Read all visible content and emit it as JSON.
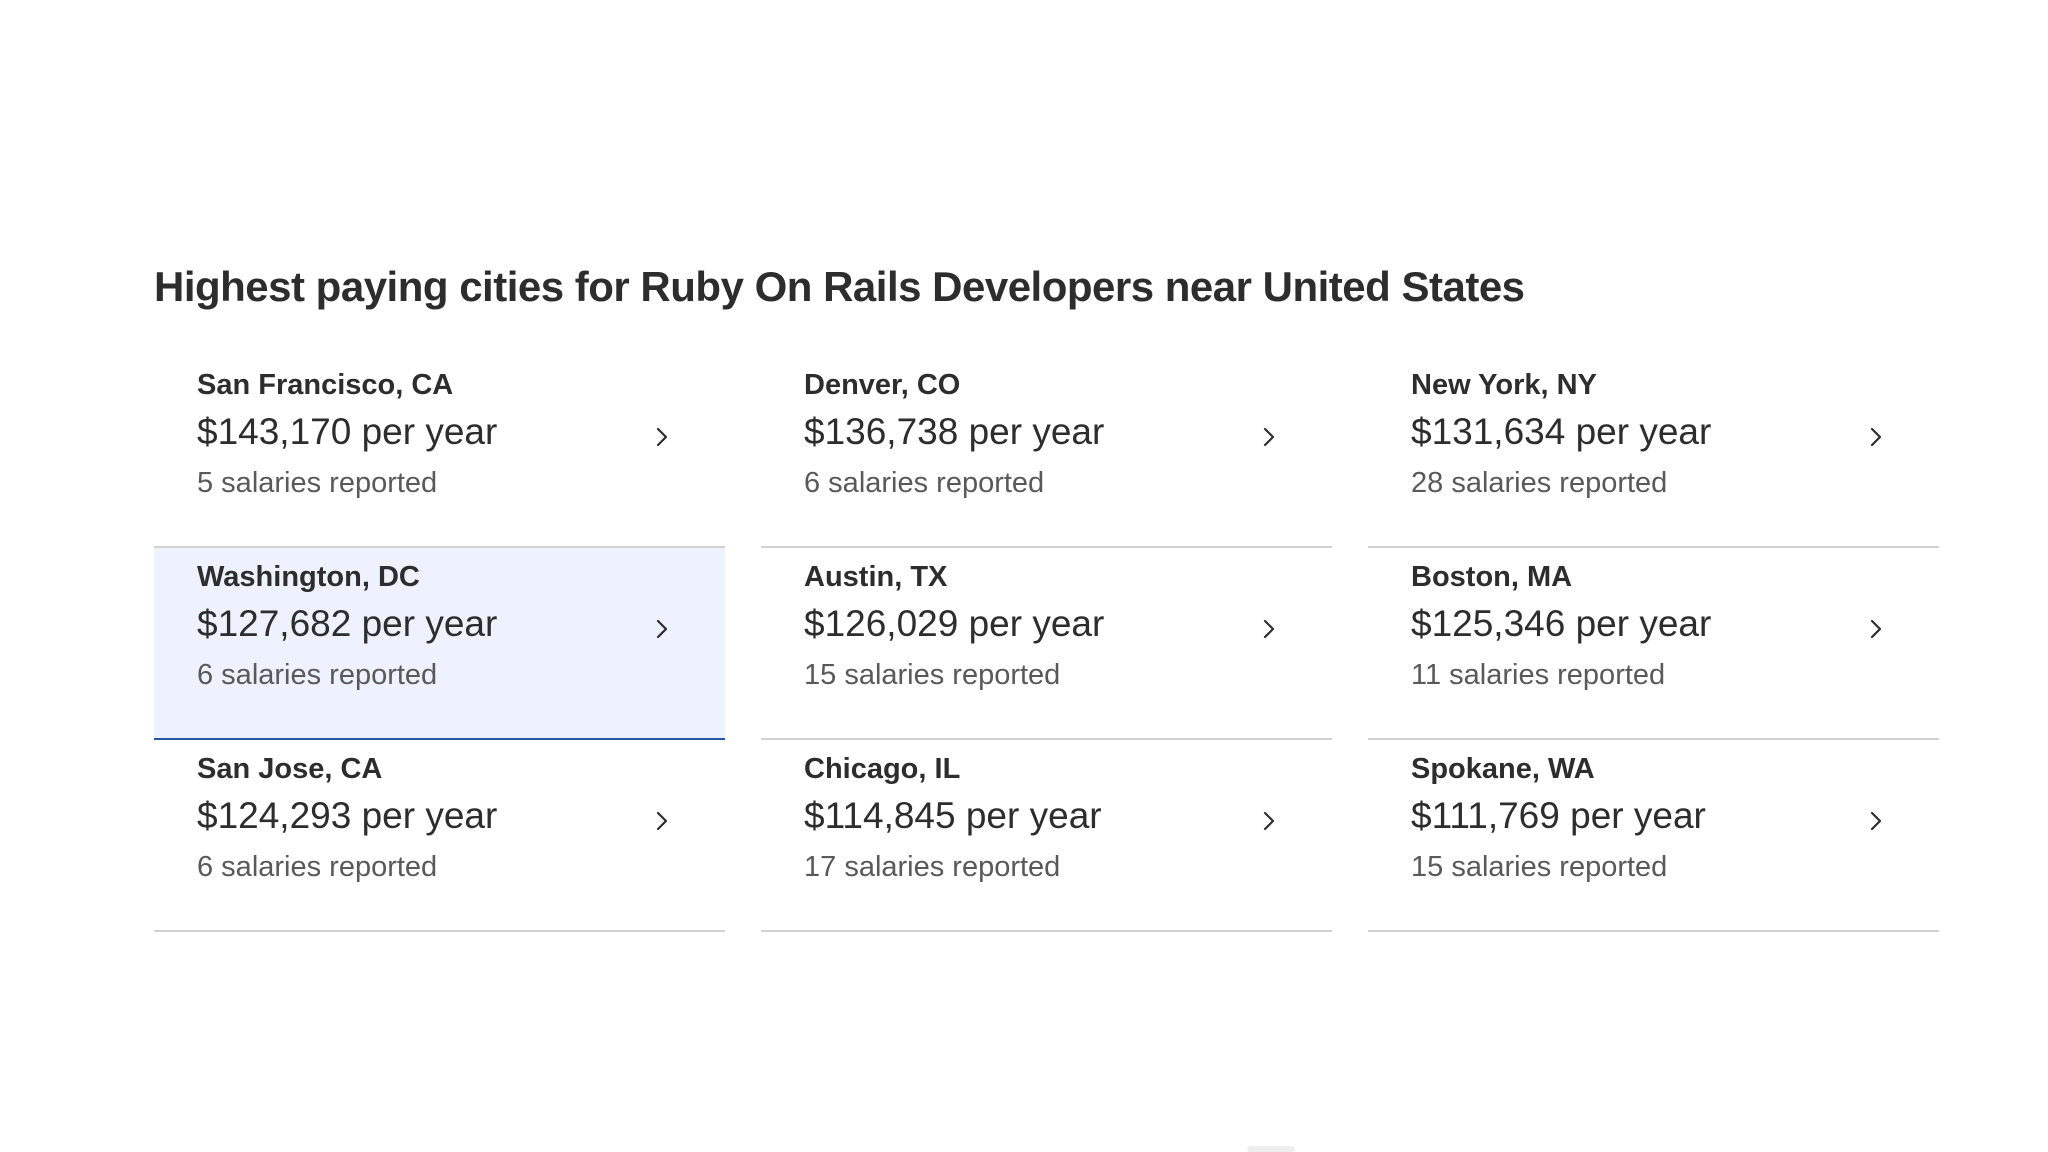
{
  "section": {
    "title": "Highest paying cities for Ruby On Rails Developers near United States"
  },
  "cities": [
    {
      "city": "San Francisco, CA",
      "salary": "$143,170 per year",
      "count": "5 salaries reported"
    },
    {
      "city": "Denver, CO",
      "salary": "$136,738 per year",
      "count": "6 salaries reported"
    },
    {
      "city": "New York, NY",
      "salary": "$131,634 per year",
      "count": "28 salaries reported"
    },
    {
      "city": "Washington, DC",
      "salary": "$127,682 per year",
      "count": "6 salaries reported"
    },
    {
      "city": "Austin, TX",
      "salary": "$126,029 per year",
      "count": "15 salaries reported"
    },
    {
      "city": "Boston, MA",
      "salary": "$125,346 per year",
      "count": "11 salaries reported"
    },
    {
      "city": "San Jose, CA",
      "salary": "$124,293 per year",
      "count": "6 salaries reported"
    },
    {
      "city": "Chicago, IL",
      "salary": "$114,845 per year",
      "count": "17 salaries reported"
    },
    {
      "city": "Spokane, WA",
      "salary": "$111,769 per year",
      "count": "15 salaries reported"
    }
  ],
  "icons": {
    "card_arrow": "chevron-right-icon"
  },
  "colors": {
    "text": "#2d2d2d",
    "muted_text": "#595959",
    "active_background": "#eef1fe",
    "active_border": "#2557a7",
    "divider": "#d4d2d0"
  }
}
